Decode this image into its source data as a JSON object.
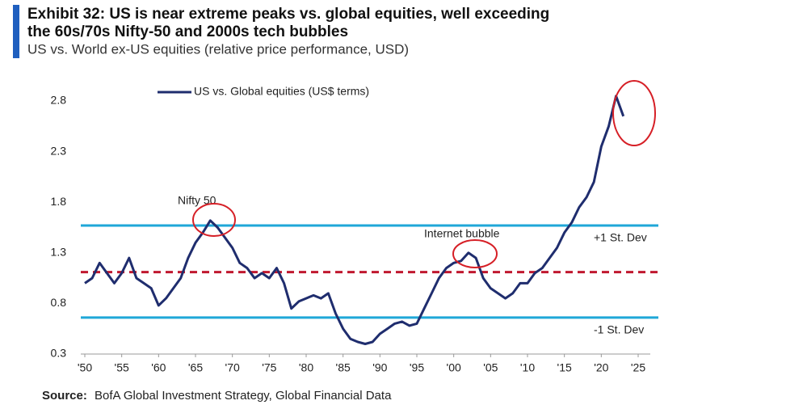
{
  "chart_data": {
    "type": "line",
    "title": [
      "Exhibit 32: US is near extreme peaks vs. global equities, well exceeding",
      "the 60s/70s Nifty-50 and 2000s tech bubbles"
    ],
    "subtitle": "US vs. World ex-US equities (relative price performance, USD)",
    "source_label": "Source:",
    "source": "BofA Global Investment Strategy, Global Financial Data",
    "x": [
      1950,
      1951,
      1952,
      1953,
      1954,
      1955,
      1956,
      1957,
      1958,
      1959,
      1960,
      1961,
      1962,
      1963,
      1964,
      1965,
      1966,
      1967,
      1968,
      1969,
      1970,
      1971,
      1972,
      1973,
      1974,
      1975,
      1976,
      1977,
      1978,
      1979,
      1980,
      1981,
      1982,
      1983,
      1984,
      1985,
      1986,
      1987,
      1988,
      1989,
      1990,
      1991,
      1992,
      1993,
      1994,
      1995,
      1996,
      1997,
      1998,
      1999,
      2000,
      2001,
      2002,
      2003,
      2004,
      2005,
      2006,
      2007,
      2008,
      2009,
      2010,
      2011,
      2012,
      2013,
      2014,
      2015,
      2016,
      2017,
      2018,
      2019,
      2020,
      2021,
      2022,
      2023
    ],
    "series": [
      {
        "name": "US vs. Global equities (US$ terms)",
        "color": "#1f2d6e",
        "values": [
          1.0,
          1.05,
          1.2,
          1.1,
          1.0,
          1.1,
          1.25,
          1.05,
          1.0,
          0.95,
          0.78,
          0.85,
          0.95,
          1.05,
          1.25,
          1.4,
          1.5,
          1.62,
          1.55,
          1.45,
          1.35,
          1.2,
          1.15,
          1.05,
          1.1,
          1.05,
          1.15,
          1.0,
          0.75,
          0.82,
          0.85,
          0.88,
          0.85,
          0.9,
          0.7,
          0.55,
          0.45,
          0.42,
          0.4,
          0.42,
          0.5,
          0.55,
          0.6,
          0.62,
          0.58,
          0.6,
          0.75,
          0.9,
          1.05,
          1.15,
          1.2,
          1.22,
          1.3,
          1.25,
          1.05,
          0.95,
          0.9,
          0.85,
          0.9,
          1.0,
          1.0,
          1.1,
          1.15,
          1.25,
          1.35,
          1.5,
          1.6,
          1.75,
          1.85,
          2.0,
          2.35,
          2.55,
          2.85,
          2.65
        ]
      }
    ],
    "reference_lines": [
      {
        "label": "+1 St. Dev",
        "value": 1.57,
        "color": "#1fa7d8",
        "dashed": false
      },
      {
        "value": 1.11,
        "color": "#c0182f",
        "dashed": true
      },
      {
        "label": "-1 St. Dev",
        "value": 0.66,
        "color": "#1fa7d8",
        "dashed": false
      }
    ],
    "annotations": [
      "Nifty 50",
      "Internet bubble"
    ],
    "xlim": [
      1950,
      2025
    ],
    "xticks": [
      {
        "value": 1950,
        "label": "'50"
      },
      {
        "value": 1955,
        "label": "'55"
      },
      {
        "value": 1960,
        "label": "'60"
      },
      {
        "value": 1965,
        "label": "'65"
      },
      {
        "value": 1970,
        "label": "'70"
      },
      {
        "value": 1975,
        "label": "'75"
      },
      {
        "value": 1980,
        "label": "'80"
      },
      {
        "value": 1985,
        "label": "'85"
      },
      {
        "value": 1990,
        "label": "'90"
      },
      {
        "value": 1995,
        "label": "'95"
      },
      {
        "value": 2000,
        "label": "'00"
      },
      {
        "value": 2005,
        "label": "'05"
      },
      {
        "value": 2010,
        "label": "'10"
      },
      {
        "value": 2015,
        "label": "'15"
      },
      {
        "value": 2020,
        "label": "'20"
      },
      {
        "value": 2025,
        "label": "'25"
      }
    ],
    "ylim": [
      0.3,
      3.0
    ],
    "yticks": [
      0.3,
      0.8,
      1.3,
      1.8,
      2.3,
      2.8
    ]
  }
}
